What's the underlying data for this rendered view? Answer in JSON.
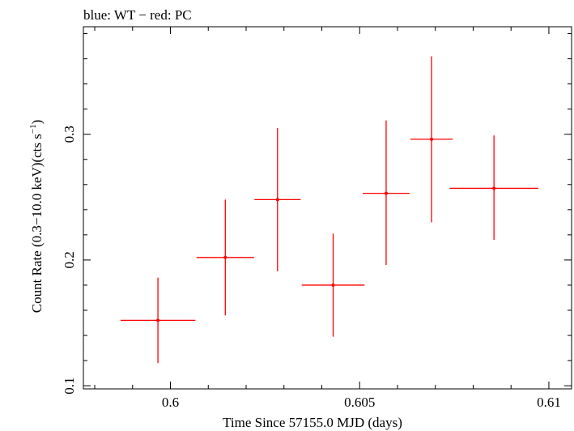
{
  "chart_data": {
    "type": "scatter",
    "title": "blue: WT − red: PC",
    "xlabel": "Time Since 57155.0 MJD (days)",
    "ylabel_main": "Count Rate (0.3−10.0 keV)(cts s",
    "ylabel_sup": "−1",
    "ylabel_close": ")",
    "xlim": [
      0.5977,
      0.6106
    ],
    "ylim": [
      0.0975,
      0.3855
    ],
    "x_ticks": [
      0.6,
      0.605,
      0.61
    ],
    "x_tick_labels": [
      "0.6",
      "0.605",
      "0.61"
    ],
    "y_ticks": [
      0.1,
      0.2,
      0.3
    ],
    "y_tick_labels": [
      "0.1",
      "0.2",
      "0.3"
    ],
    "series": [
      {
        "name": "PC",
        "color": "#ff0000",
        "points": [
          {
            "x": 0.59967,
            "xerr_lo": 0.00099,
            "xerr_hi": 0.00099,
            "y": 0.152,
            "yerr_lo": 0.034,
            "yerr_hi": 0.034
          },
          {
            "x": 0.60145,
            "xerr_lo": 0.00076,
            "xerr_hi": 0.00076,
            "y": 0.202,
            "yerr_lo": 0.046,
            "yerr_hi": 0.046
          },
          {
            "x": 0.60283,
            "xerr_lo": 0.00061,
            "xerr_hi": 0.00061,
            "y": 0.248,
            "yerr_lo": 0.057,
            "yerr_hi": 0.057
          },
          {
            "x": 0.6043,
            "xerr_lo": 0.00083,
            "xerr_hi": 0.00083,
            "y": 0.18,
            "yerr_lo": 0.041,
            "yerr_hi": 0.041
          },
          {
            "x": 0.6057,
            "xerr_lo": 0.00062,
            "xerr_hi": 0.00062,
            "y": 0.253,
            "yerr_lo": 0.057,
            "yerr_hi": 0.058
          },
          {
            "x": 0.6069,
            "xerr_lo": 0.00056,
            "xerr_hi": 0.00056,
            "y": 0.296,
            "yerr_lo": 0.066,
            "yerr_hi": 0.066
          },
          {
            "x": 0.60855,
            "xerr_lo": 0.00117,
            "xerr_hi": 0.00117,
            "y": 0.257,
            "yerr_lo": 0.041,
            "yerr_hi": 0.042
          }
        ]
      }
    ]
  }
}
